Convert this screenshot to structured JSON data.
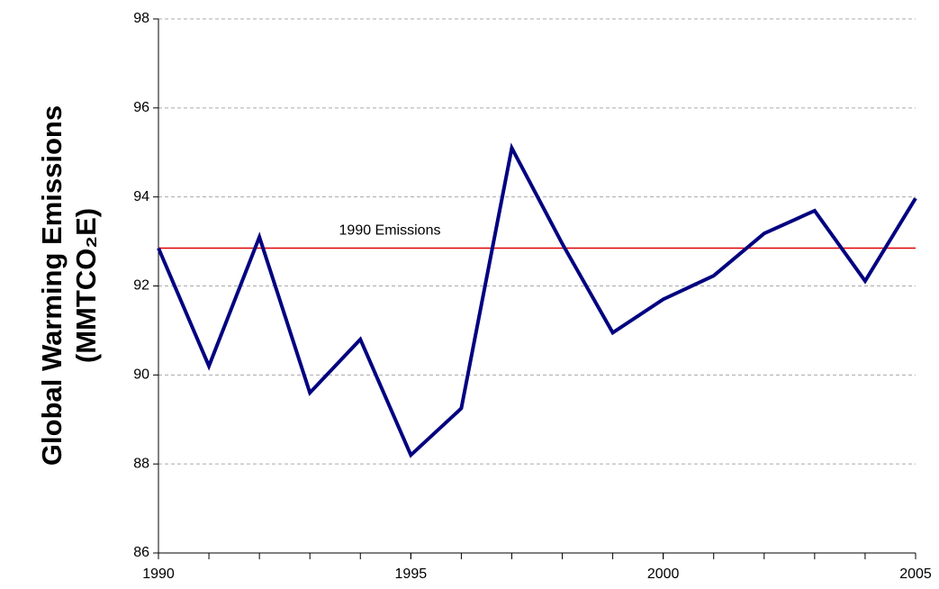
{
  "chart_data": {
    "type": "line",
    "y_label": [
      "Global Warming Emissions",
      "(MMTCO₂E)"
    ],
    "x": [
      1990,
      1991,
      1992,
      1993,
      1994,
      1995,
      1996,
      1997,
      1998,
      1999,
      2000,
      2001,
      2002,
      2003,
      2004,
      2005
    ],
    "series": [
      {
        "color": "#000080",
        "values": [
          92.85,
          90.2,
          93.1,
          89.6,
          90.8,
          88.2,
          89.25,
          95.1,
          92.95,
          90.95,
          91.7,
          92.23,
          93.18,
          93.69,
          92.11,
          93.97
        ]
      }
    ],
    "xlim": [
      1990,
      2005
    ],
    "xticks": [
      1990,
      1995,
      2000,
      2005
    ],
    "ylim": [
      86,
      98
    ],
    "yticks": [
      86,
      88,
      90,
      92,
      94,
      96,
      98
    ],
    "grid": true,
    "reference_line": {
      "value": 92.85,
      "label": "1990 Emissions",
      "color": "#e00000"
    }
  }
}
